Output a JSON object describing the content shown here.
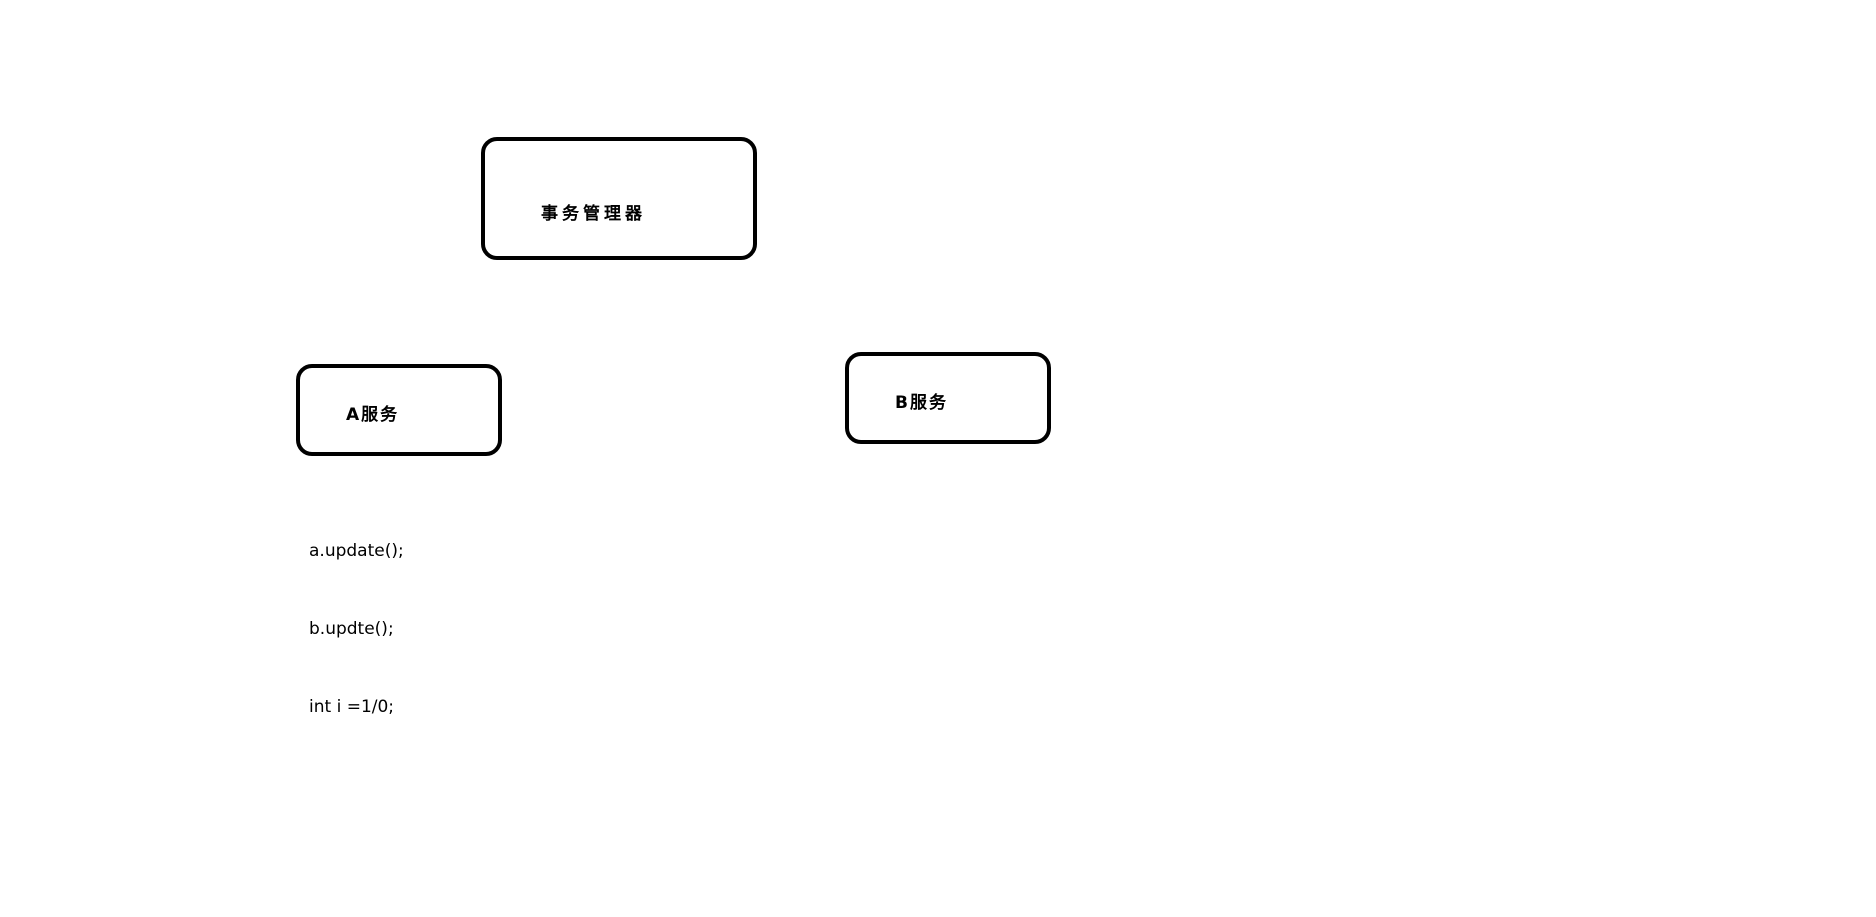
{
  "diagram": {
    "nodes": {
      "transaction_manager": {
        "label": "事务管理器"
      },
      "service_a": {
        "label": "A服务"
      },
      "service_b": {
        "label": "B服务"
      }
    },
    "code_lines": [
      "a.update();",
      "b.updte();",
      "int i =1/0;"
    ]
  }
}
